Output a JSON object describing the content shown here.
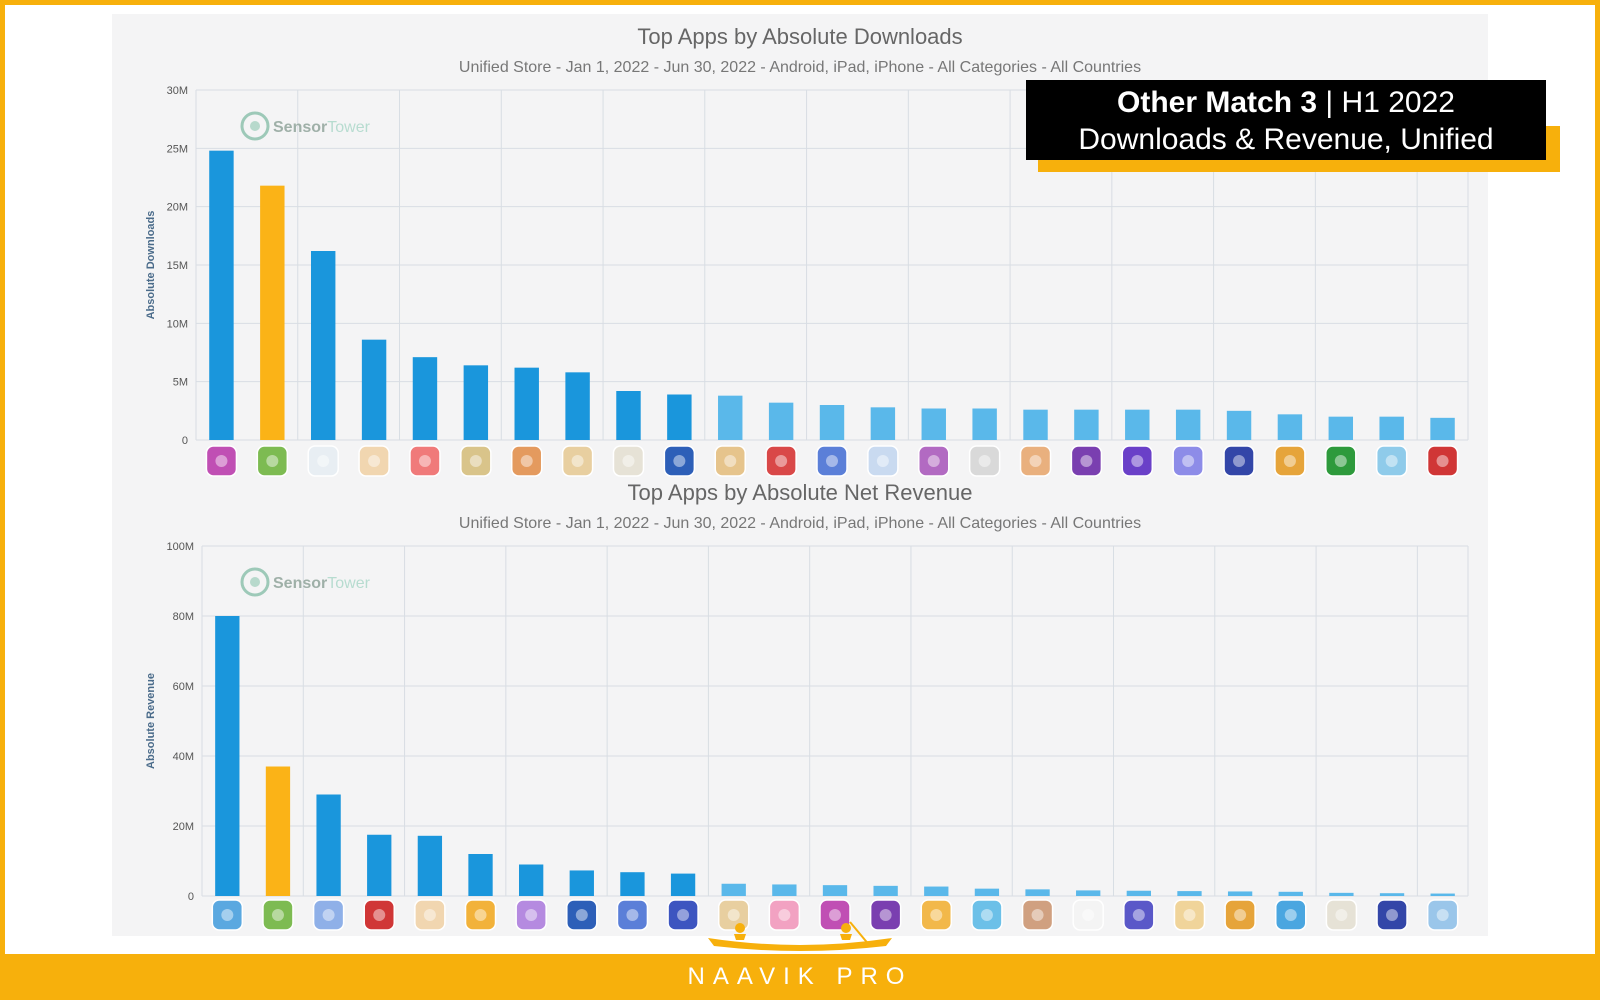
{
  "colors": {
    "primary_bar": "#1a96dc",
    "primary_bar_light": "#5ab8ea",
    "highlight_bar": "#fbb317",
    "grid": "#d8dde3",
    "brand_yellow": "#f7b00c"
  },
  "badge": {
    "title_bold": "Other Match 3",
    "title_sep": " | ",
    "title_rest": "H1 2022",
    "subtitle": "Downloads & Revenue, Unified"
  },
  "footer": {
    "label": "NAAVIK PRO"
  },
  "watermark": {
    "text_a": "Sensor",
    "text_b": "Tower"
  },
  "chart_data": [
    {
      "type": "bar",
      "title": "Top Apps by Absolute Downloads",
      "subtitle": "Unified Store - Jan 1, 2022 - Jun 30, 2022 - Android, iPad, iPhone - All Categories - All Countries",
      "ylabel": "Absolute Downloads",
      "xlabel": "",
      "ylim": [
        0,
        30000000
      ],
      "yticks": [
        0,
        5000000,
        10000000,
        15000000,
        20000000,
        25000000,
        30000000
      ],
      "ytick_labels": [
        "0",
        "5M",
        "10M",
        "15M",
        "20M",
        "25M",
        "30M"
      ],
      "highlight_index": 1,
      "values": [
        24800000,
        21800000,
        16200000,
        8600000,
        7100000,
        6400000,
        6200000,
        5800000,
        4200000,
        3900000,
        3800000,
        3200000,
        3000000,
        2800000,
        2700000,
        2700000,
        2600000,
        2600000,
        2600000,
        2600000,
        2500000,
        2200000,
        2000000,
        2000000,
        1900000
      ],
      "icons": [
        "#c04fb4",
        "#7dbb52",
        "#e8eef3",
        "#f1d6b0",
        "#f07a7a",
        "#d9c48a",
        "#e49a5e",
        "#e8cfa0",
        "#e6e2d6",
        "#2d5fb8",
        "#e6c48c",
        "#d94848",
        "#5b7fd8",
        "#c9daf0",
        "#b26ac2",
        "#d9d9d9",
        "#e9b07e",
        "#7a3fb0",
        "#6a40c8",
        "#8d8ce8",
        "#3346a8",
        "#e6a43a",
        "#2e9a3c",
        "#8fcbea",
        "#d03636"
      ]
    },
    {
      "type": "bar",
      "title": "Top Apps by Absolute Net Revenue",
      "subtitle": "Unified Store - Jan 1, 2022 - Jun 30, 2022 - Android, iPad, iPhone - All Categories - All Countries",
      "ylabel": "Absolute Revenue",
      "xlabel": "",
      "ylim": [
        0,
        100000000
      ],
      "yticks": [
        0,
        20000000,
        40000000,
        60000000,
        80000000,
        100000000
      ],
      "ytick_labels": [
        "0",
        "20M",
        "40M",
        "60M",
        "80M",
        "100M"
      ],
      "highlight_index": 1,
      "values": [
        80000000,
        37000000,
        29000000,
        17500000,
        17200000,
        12000000,
        9000000,
        7300000,
        6800000,
        6400000,
        3500000,
        3300000,
        3100000,
        2900000,
        2700000,
        2100000,
        1900000,
        1600000,
        1500000,
        1400000,
        1300000,
        1200000,
        900000,
        800000,
        700000
      ],
      "icons": [
        "#5aa8e0",
        "#7dbb52",
        "#8fb0e8",
        "#d03636",
        "#f1d6b0",
        "#f2b23a",
        "#b58ae0",
        "#2d5fb8",
        "#5b7fd8",
        "#3d55c0",
        "#e8cfa0",
        "#f2a2c2",
        "#c04fb4",
        "#7a3fb0",
        "#f2b84a",
        "#6cc0e8",
        "#d0a080",
        "#f4f4f4",
        "#5a58c8",
        "#f0d49a",
        "#e6a43a",
        "#4aa6e0",
        "#e6e2d6",
        "#3346a8",
        "#9ac6ea"
      ]
    }
  ]
}
